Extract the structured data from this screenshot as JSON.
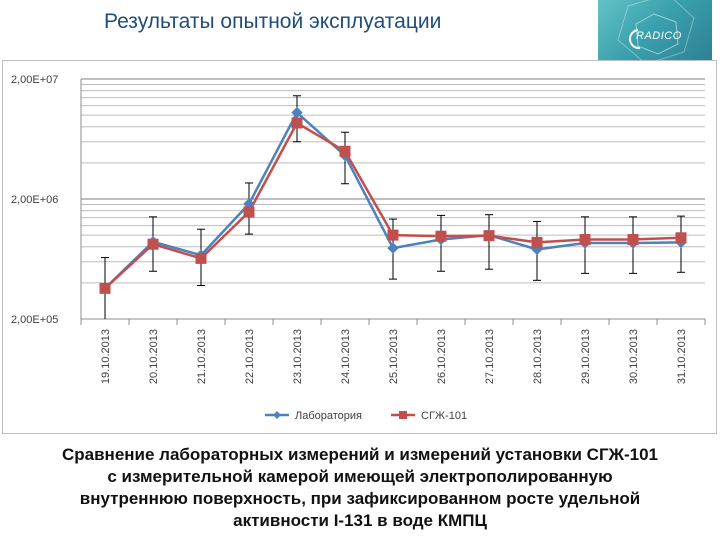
{
  "page": {
    "title": "Результаты опытной эксплуатации",
    "caption_lines": [
      "Сравнение лабораторных измерений и измерений установки СГЖ-101",
      "с измерительной камерой имеющей электрополированную",
      "внутреннюю поверхность, при зафиксированном росте удельной",
      "активности I-131 в воде КМПЦ"
    ]
  },
  "logo": {
    "text": "RADICO"
  },
  "chart_data": {
    "type": "line",
    "y_scale": "log",
    "ylim": [
      200000,
      20000000
    ],
    "y_tick_labels": [
      "2,00E+07",
      "2,00E+06",
      "2,00E+05"
    ],
    "y_tick_values": [
      20000000,
      2000000,
      200000
    ],
    "categories": [
      "19.10.2013",
      "20.10.2013",
      "21.10.2013",
      "22.10.2013",
      "23.10.2013",
      "24.10.2013",
      "25.10.2013",
      "26.10.2013",
      "27.10.2013",
      "28.10.2013",
      "29.10.2013",
      "30.10.2013",
      "31.10.2013"
    ],
    "series": [
      {
        "name": "Лаборатория",
        "color": "#4f81bd",
        "marker": "diamond",
        "values": [
          360000,
          880000,
          680000,
          1820000,
          10500000,
          4600000,
          780000,
          920000,
          1000000,
          760000,
          860000,
          860000,
          870000
        ],
        "error_low": [
          200000,
          500000,
          380000,
          1020000,
          6000000,
          2680000,
          430000,
          500000,
          520000,
          420000,
          480000,
          480000,
          490000
        ],
        "error_high": [
          650000,
          1420000,
          1120000,
          2720000,
          14500000,
          7200000,
          1360000,
          1460000,
          1480000,
          1300000,
          1420000,
          1420000,
          1440000
        ]
      },
      {
        "name": "СГЖ-101",
        "color": "#c0504d",
        "marker": "square",
        "values": [
          360000,
          840000,
          640000,
          1560000,
          8600000,
          5000000,
          1000000,
          980000,
          990000,
          870000,
          920000,
          920000,
          950000
        ]
      }
    ]
  }
}
